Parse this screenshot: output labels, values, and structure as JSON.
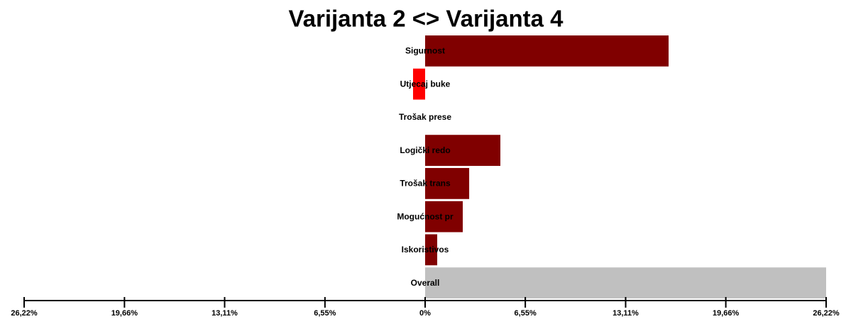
{
  "chart_data": {
    "type": "bar",
    "orientation": "horizontal",
    "title": "Varijanta 2 <> Varijanta 4",
    "categories": [
      "Sigurnost",
      "Utjecaj buke",
      "Trošak prese",
      "Logički redo",
      "Trošak trans",
      "Mogućnost pr",
      "Iskoristivos",
      "Overall"
    ],
    "values": [
      15.92,
      -0.79,
      0,
      4.92,
      2.88,
      2.46,
      0.79,
      26.22
    ],
    "colors": [
      "#800000",
      "#ff0000",
      "#800000",
      "#800000",
      "#800000",
      "#800000",
      "#800000",
      "#c0c0c0"
    ],
    "xlim": [
      -26.22,
      26.22
    ],
    "xticks": [
      {
        "value": -26.22,
        "label": "26,22%"
      },
      {
        "value": -19.66,
        "label": "19,66%"
      },
      {
        "value": -13.11,
        "label": "13,11%"
      },
      {
        "value": -6.55,
        "label": "6,55%"
      },
      {
        "value": 0,
        "label": "0%"
      },
      {
        "value": 6.55,
        "label": "6,55%"
      },
      {
        "value": 13.11,
        "label": "13,11%"
      },
      {
        "value": 19.66,
        "label": "19,66%"
      },
      {
        "value": 26.22,
        "label": "26,22%"
      }
    ],
    "grid": false
  }
}
